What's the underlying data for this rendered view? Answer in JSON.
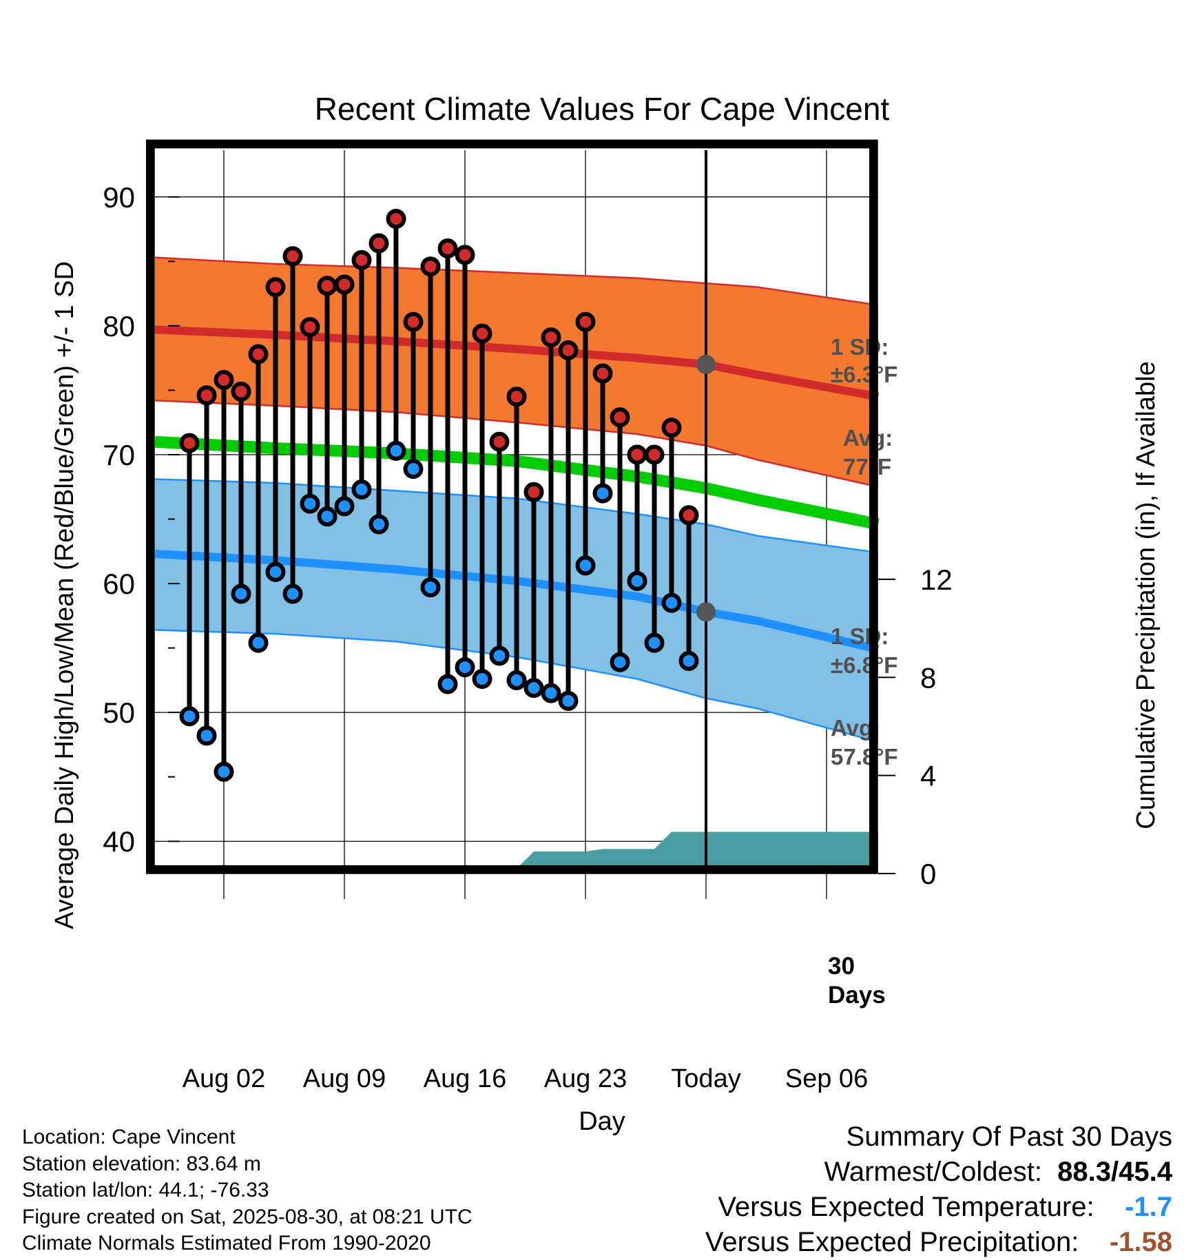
{
  "chart_data": {
    "type": "line",
    "title": "Recent Climate Values For Cape Vincent",
    "xlabel": "Day",
    "ylabel": "Average Daily High/Low/Mean (Red/Blue/Green) +/- 1 SD",
    "y2label": "Cumulative Precipitation (in), If Available",
    "ylim": [
      37.5,
      94
    ],
    "y2lim": [
      0,
      29.7
    ],
    "yticks": [
      40,
      50,
      60,
      70,
      80,
      90
    ],
    "y2ticks": [
      0,
      4,
      8,
      12
    ],
    "xlim": [
      "Jul 29",
      "Sep 09"
    ],
    "xticks": [
      {
        "date": "Aug 02",
        "label": "Aug 02"
      },
      {
        "date": "Aug 09",
        "label": "Aug 09"
      },
      {
        "date": "Aug 16",
        "label": "Aug 16"
      },
      {
        "date": "Aug 23",
        "label": "Aug 23"
      },
      {
        "date": "Aug 30",
        "label": "Today"
      },
      {
        "date": "Sep 06",
        "label": "Sep 06"
      }
    ],
    "today": "Aug 30",
    "grid": true,
    "days": [
      "Jul 31",
      "Aug 01",
      "Aug 02",
      "Aug 03",
      "Aug 04",
      "Aug 05",
      "Aug 06",
      "Aug 07",
      "Aug 08",
      "Aug 09",
      "Aug 10",
      "Aug 11",
      "Aug 12",
      "Aug 13",
      "Aug 14",
      "Aug 15",
      "Aug 16",
      "Aug 17",
      "Aug 18",
      "Aug 19",
      "Aug 20",
      "Aug 21",
      "Aug 22",
      "Aug 23",
      "Aug 24",
      "Aug 25",
      "Aug 26",
      "Aug 27",
      "Aug 28",
      "Aug 29"
    ],
    "highs": [
      70.9,
      74.6,
      75.8,
      74.9,
      77.8,
      83.0,
      85.4,
      79.9,
      83.1,
      83.2,
      85.1,
      86.4,
      88.3,
      80.3,
      84.6,
      86.0,
      85.5,
      79.4,
      71.0,
      74.5,
      67.1,
      79.1,
      78.1,
      80.3,
      76.3,
      72.9,
      70.0,
      70.0,
      72.1,
      65.3
    ],
    "lows": [
      49.7,
      48.2,
      45.4,
      59.2,
      55.4,
      60.9,
      59.2,
      66.2,
      65.2,
      66.0,
      67.3,
      64.6,
      70.3,
      68.9,
      59.7,
      52.2,
      53.5,
      52.6,
      54.4,
      52.5,
      51.9,
      51.5,
      50.9,
      61.4,
      67.0,
      53.9,
      60.2,
      55.4,
      58.5,
      54.0
    ],
    "normals": {
      "dates": [
        "Jul 29",
        "Aug 05",
        "Aug 12",
        "Aug 19",
        "Aug 26",
        "Aug 30",
        "Sep 02",
        "Sep 09"
      ],
      "high_avg": [
        79.7,
        79.3,
        78.8,
        78.2,
        77.5,
        77.0,
        76.2,
        74.5
      ],
      "high_upper": [
        85.3,
        84.8,
        84.5,
        84.1,
        83.7,
        83.3,
        83.0,
        81.6
      ],
      "high_lower": [
        74.2,
        73.8,
        73.3,
        72.5,
        71.6,
        70.7,
        69.6,
        67.5
      ],
      "mean_avg": [
        71.0,
        70.5,
        70.1,
        69.5,
        68.3,
        67.4,
        66.5,
        64.6
      ],
      "low_avg": [
        62.3,
        61.8,
        61.1,
        60.2,
        59.0,
        57.8,
        57.1,
        54.9
      ],
      "low_upper": [
        68.1,
        67.8,
        67.2,
        66.6,
        65.4,
        64.6,
        63.7,
        62.4
      ],
      "low_lower": [
        56.4,
        56.1,
        55.5,
        54.3,
        52.6,
        51.1,
        50.3,
        47.7
      ]
    },
    "precip": {
      "dates": [
        "Aug 17",
        "Aug 19",
        "Aug 20",
        "Aug 21",
        "Aug 22",
        "Aug 23",
        "Aug 24",
        "Aug 27",
        "Aug 28",
        "Aug 29",
        "Sep 09"
      ],
      "values": [
        0,
        0.2,
        0.9,
        0.9,
        0.9,
        0.9,
        1.0,
        1.0,
        1.7,
        1.7,
        1.7
      ]
    },
    "annotations": {
      "high_sd_label": "1 SD:",
      "high_sd_value": "±6.3°F",
      "high_avg_label": "Avg:",
      "high_avg_value": "77°F",
      "low_sd_label": "1 SD:",
      "low_sd_value": "±6.8°F",
      "low_avg_label": "Avg:",
      "low_avg_value": "57.8°F",
      "precip_days_line1": "30",
      "precip_days_line2": "Days"
    },
    "colors": {
      "high_band": "#f47930",
      "high_line": "#d12b2b",
      "mean_line": "#00cc00",
      "low_band": "#82c0e6",
      "low_line": "#1e90ff",
      "precip_fill": "#4a9da2",
      "high_marker": "#d12b2b",
      "low_marker": "#1e90ff",
      "annotation": "#505050"
    }
  },
  "footer": {
    "location": "Location: Cape Vincent",
    "elevation": "Station elevation: 83.64 m",
    "latlon": "Station lat/lon: 44.1; -76.33",
    "created": "Figure created on Sat, 2025-08-30, at 08:21 UTC",
    "normals": "Climate Normals Estimated From 1990-2020"
  },
  "summary": {
    "title": "Summary Of Past 30 Days",
    "warm_cold_label": "Warmest/Coldest:",
    "warm_cold_value": "88.3/45.4",
    "temp_label": "Versus Expected Temperature:",
    "temp_value": "-1.7",
    "precip_label": "Versus Expected Precipitation:",
    "precip_value": "-1.58"
  }
}
